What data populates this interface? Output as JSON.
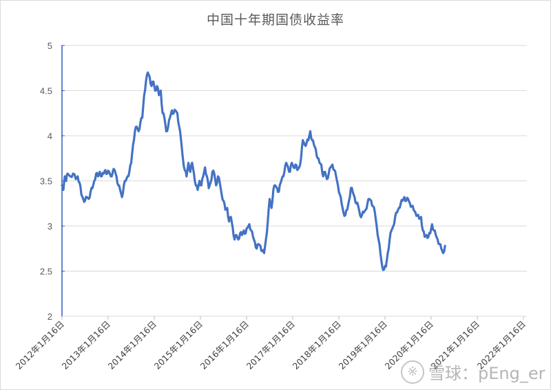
{
  "chart_data": {
    "type": "line",
    "title": "中国十年期国债收益率",
    "xlabel": "",
    "ylabel": "",
    "ylim": [
      2,
      5
    ],
    "yticks": [
      "2",
      "2.5",
      "3",
      "3.5",
      "4",
      "4.5",
      "5"
    ],
    "xticks": [
      "2012年1月16日",
      "2013年1月16日",
      "2014年1月16日",
      "2015年1月16日",
      "2016年1月16日",
      "2017年1月16日",
      "2018年1月16日",
      "2019年1月16日",
      "2020年1月16日",
      "2021年1月16日",
      "2022年1月16日"
    ],
    "grid": "horizontal",
    "legend": "none",
    "line_color": "#4472C4",
    "series": [
      {
        "name": "中国十年期国债收益率",
        "x_unit": "years since 2012-01-16",
        "points": [
          [
            0.0,
            3.45
          ],
          [
            0.03,
            3.4
          ],
          [
            0.06,
            3.55
          ],
          [
            0.09,
            3.5
          ],
          [
            0.12,
            3.58
          ],
          [
            0.18,
            3.55
          ],
          [
            0.24,
            3.58
          ],
          [
            0.3,
            3.52
          ],
          [
            0.34,
            3.55
          ],
          [
            0.38,
            3.48
          ],
          [
            0.42,
            3.35
          ],
          [
            0.46,
            3.3
          ],
          [
            0.5,
            3.28
          ],
          [
            0.54,
            3.32
          ],
          [
            0.58,
            3.3
          ],
          [
            0.62,
            3.38
          ],
          [
            0.66,
            3.42
          ],
          [
            0.7,
            3.5
          ],
          [
            0.74,
            3.58
          ],
          [
            0.78,
            3.55
          ],
          [
            0.82,
            3.6
          ],
          [
            0.86,
            3.55
          ],
          [
            0.9,
            3.58
          ],
          [
            0.94,
            3.62
          ],
          [
            0.98,
            3.58
          ],
          [
            1.02,
            3.6
          ],
          [
            1.06,
            3.55
          ],
          [
            1.1,
            3.6
          ],
          [
            1.14,
            3.62
          ],
          [
            1.18,
            3.55
          ],
          [
            1.22,
            3.45
          ],
          [
            1.26,
            3.4
          ],
          [
            1.3,
            3.32
          ],
          [
            1.34,
            3.45
          ],
          [
            1.38,
            3.5
          ],
          [
            1.42,
            3.55
          ],
          [
            1.46,
            3.6
          ],
          [
            1.5,
            3.7
          ],
          [
            1.54,
            3.9
          ],
          [
            1.58,
            4.05
          ],
          [
            1.62,
            4.1
          ],
          [
            1.66,
            4.05
          ],
          [
            1.7,
            4.15
          ],
          [
            1.74,
            4.2
          ],
          [
            1.78,
            4.45
          ],
          [
            1.82,
            4.6
          ],
          [
            1.86,
            4.7
          ],
          [
            1.9,
            4.65
          ],
          [
            1.94,
            4.55
          ],
          [
            1.98,
            4.6
          ],
          [
            2.02,
            4.5
          ],
          [
            2.06,
            4.55
          ],
          [
            2.1,
            4.45
          ],
          [
            2.14,
            4.5
          ],
          [
            2.18,
            4.25
          ],
          [
            2.22,
            4.2
          ],
          [
            2.26,
            4.05
          ],
          [
            2.3,
            4.1
          ],
          [
            2.34,
            4.2
          ],
          [
            2.38,
            4.28
          ],
          [
            2.42,
            4.25
          ],
          [
            2.46,
            4.28
          ],
          [
            2.5,
            4.25
          ],
          [
            2.54,
            4.1
          ],
          [
            2.58,
            3.95
          ],
          [
            2.62,
            3.75
          ],
          [
            2.66,
            3.62
          ],
          [
            2.7,
            3.55
          ],
          [
            2.74,
            3.7
          ],
          [
            2.78,
            3.6
          ],
          [
            2.82,
            3.7
          ],
          [
            2.86,
            3.58
          ],
          [
            2.9,
            3.45
          ],
          [
            2.94,
            3.4
          ],
          [
            2.98,
            3.5
          ],
          [
            3.02,
            3.45
          ],
          [
            3.06,
            3.55
          ],
          [
            3.1,
            3.65
          ],
          [
            3.14,
            3.55
          ],
          [
            3.18,
            3.42
          ],
          [
            3.22,
            3.48
          ],
          [
            3.26,
            3.6
          ],
          [
            3.3,
            3.58
          ],
          [
            3.34,
            3.45
          ],
          [
            3.38,
            3.55
          ],
          [
            3.42,
            3.48
          ],
          [
            3.46,
            3.35
          ],
          [
            3.5,
            3.28
          ],
          [
            3.54,
            3.18
          ],
          [
            3.58,
            3.2
          ],
          [
            3.62,
            3.05
          ],
          [
            3.66,
            3.1
          ],
          [
            3.7,
            2.98
          ],
          [
            3.74,
            2.85
          ],
          [
            3.78,
            2.9
          ],
          [
            3.82,
            2.85
          ],
          [
            3.86,
            2.92
          ],
          [
            3.9,
            2.9
          ],
          [
            3.94,
            2.95
          ],
          [
            3.98,
            2.92
          ],
          [
            4.02,
            2.98
          ],
          [
            4.06,
            3.02
          ],
          [
            4.1,
            2.95
          ],
          [
            4.14,
            2.88
          ],
          [
            4.18,
            2.82
          ],
          [
            4.22,
            2.75
          ],
          [
            4.26,
            2.8
          ],
          [
            4.3,
            2.78
          ],
          [
            4.34,
            2.72
          ],
          [
            4.38,
            2.7
          ],
          [
            4.42,
            2.85
          ],
          [
            4.46,
            3.05
          ],
          [
            4.5,
            3.3
          ],
          [
            4.54,
            3.2
          ],
          [
            4.58,
            3.4
          ],
          [
            4.62,
            3.45
          ],
          [
            4.66,
            3.42
          ],
          [
            4.7,
            3.38
          ],
          [
            4.74,
            3.48
          ],
          [
            4.78,
            3.55
          ],
          [
            4.82,
            3.6
          ],
          [
            4.86,
            3.7
          ],
          [
            4.9,
            3.65
          ],
          [
            4.94,
            3.6
          ],
          [
            4.98,
            3.7
          ],
          [
            5.02,
            3.65
          ],
          [
            5.06,
            3.68
          ],
          [
            5.1,
            3.62
          ],
          [
            5.14,
            3.65
          ],
          [
            5.18,
            3.75
          ],
          [
            5.22,
            3.95
          ],
          [
            5.26,
            3.9
          ],
          [
            5.3,
            3.92
          ],
          [
            5.34,
            3.95
          ],
          [
            5.38,
            4.05
          ],
          [
            5.42,
            3.95
          ],
          [
            5.46,
            3.9
          ],
          [
            5.5,
            3.85
          ],
          [
            5.54,
            3.75
          ],
          [
            5.58,
            3.7
          ],
          [
            5.62,
            3.68
          ],
          [
            5.66,
            3.55
          ],
          [
            5.7,
            3.6
          ],
          [
            5.74,
            3.52
          ],
          [
            5.78,
            3.58
          ],
          [
            5.82,
            3.65
          ],
          [
            5.86,
            3.68
          ],
          [
            5.9,
            3.62
          ],
          [
            5.94,
            3.55
          ],
          [
            5.98,
            3.45
          ],
          [
            6.02,
            3.35
          ],
          [
            6.06,
            3.25
          ],
          [
            6.1,
            3.15
          ],
          [
            6.14,
            3.12
          ],
          [
            6.18,
            3.18
          ],
          [
            6.22,
            3.28
          ],
          [
            6.26,
            3.42
          ],
          [
            6.3,
            3.38
          ],
          [
            6.34,
            3.32
          ],
          [
            6.38,
            3.25
          ],
          [
            6.42,
            3.22
          ],
          [
            6.46,
            3.12
          ],
          [
            6.5,
            3.12
          ],
          [
            6.54,
            3.15
          ],
          [
            6.58,
            3.18
          ],
          [
            6.62,
            3.25
          ],
          [
            6.66,
            3.3
          ],
          [
            6.7,
            3.28
          ],
          [
            6.74,
            3.22
          ],
          [
            6.78,
            3.15
          ],
          [
            6.82,
            3.0
          ],
          [
            6.86,
            2.85
          ],
          [
            6.9,
            2.7
          ],
          [
            6.94,
            2.55
          ],
          [
            6.98,
            2.52
          ],
          [
            7.02,
            2.55
          ],
          [
            7.06,
            2.7
          ],
          [
            7.1,
            2.85
          ],
          [
            7.14,
            2.95
          ],
          [
            7.18,
            3.0
          ],
          [
            7.22,
            3.1
          ],
          [
            7.26,
            3.15
          ],
          [
            7.3,
            3.2
          ],
          [
            7.34,
            3.25
          ],
          [
            7.38,
            3.28
          ],
          [
            7.42,
            3.32
          ],
          [
            7.46,
            3.28
          ],
          [
            7.5,
            3.3
          ],
          [
            7.54,
            3.25
          ],
          [
            7.58,
            3.22
          ],
          [
            7.62,
            3.18
          ],
          [
            7.66,
            3.15
          ],
          [
            7.7,
            3.12
          ],
          [
            7.74,
            3.08
          ],
          [
            7.78,
            3.1
          ],
          [
            7.82,
            2.95
          ],
          [
            7.86,
            2.88
          ],
          [
            7.9,
            2.9
          ],
          [
            7.94,
            2.88
          ],
          [
            7.98,
            2.92
          ],
          [
            8.02,
            3.02
          ],
          [
            8.06,
            2.95
          ],
          [
            8.1,
            2.9
          ],
          [
            8.14,
            2.85
          ],
          [
            8.18,
            2.8
          ],
          [
            8.22,
            2.75
          ],
          [
            8.26,
            2.7
          ],
          [
            8.3,
            2.78
          ]
        ]
      }
    ]
  },
  "watermark": {
    "logo": "※",
    "text": "雪球：pEng_er"
  }
}
